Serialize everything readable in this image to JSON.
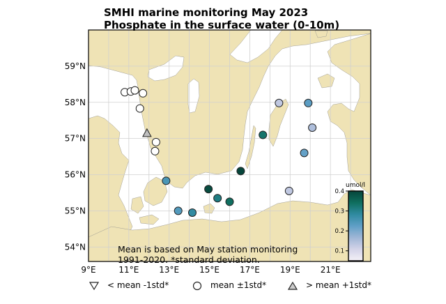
{
  "title_line1": "SMHI marine monitoring May 2023",
  "title_line2": "Phosphate in the surface water (0-10m)",
  "note_line1": "Mean is based on May station monitoring",
  "note_line2": "1991-2020. *standard deviation.",
  "lon_ticks": [
    {
      "value": 9,
      "label": "9°E"
    },
    {
      "value": 11,
      "label": "11°E"
    },
    {
      "value": 13,
      "label": "13°E"
    },
    {
      "value": 15,
      "label": "15°E"
    },
    {
      "value": 17,
      "label": "17°E"
    },
    {
      "value": 19,
      "label": "19°E"
    },
    {
      "value": 21,
      "label": "21°E"
    }
  ],
  "lat_ticks": [
    {
      "value": 54,
      "label": "54°N"
    },
    {
      "value": 55,
      "label": "55°N"
    },
    {
      "value": 56,
      "label": "56°N"
    },
    {
      "value": 57,
      "label": "57°N"
    },
    {
      "value": 58,
      "label": "58°N"
    },
    {
      "value": 59,
      "label": "59°N"
    }
  ],
  "colorbar": {
    "unit": "umol/l",
    "min": 0.05,
    "max": 0.4,
    "ticks": [
      {
        "value": 0.1,
        "label": "0.1"
      },
      {
        "value": 0.2,
        "label": "0.2"
      },
      {
        "value": 0.3,
        "label": "0.3"
      },
      {
        "value": 0.4,
        "label": "0.4"
      }
    ],
    "colors": [
      "#f4f1f7",
      "#d3d3e8",
      "#9fb6d6",
      "#5f9fc6",
      "#2f8aa0",
      "#0f6e5e",
      "#06453a"
    ]
  },
  "legend": [
    {
      "symbol": "triangle-down",
      "label": "< mean -1std*"
    },
    {
      "symbol": "circle",
      "label": "mean ±1std*"
    },
    {
      "symbol": "triangle-up",
      "label": "> mean +1std*"
    }
  ],
  "colors": {
    "land": "#efe3b5",
    "sea": "#ffffff",
    "grid": "#d0d0d0",
    "marker_edge": "#222222",
    "high_marker": "#bfbfbf"
  },
  "chart_data": {
    "type": "scatter",
    "title": "SMHI marine monitoring May 2023 Phosphate in the surface water (0-10m)",
    "xlim": [
      9,
      23
    ],
    "ylim": [
      53.6,
      60.0
    ],
    "stations": [
      {
        "lon": 10.8,
        "lat": 58.28,
        "category": "mean",
        "value": null
      },
      {
        "lon": 11.1,
        "lat": 58.3,
        "category": "mean",
        "value": null
      },
      {
        "lon": 11.3,
        "lat": 58.33,
        "category": "mean",
        "value": null
      },
      {
        "lon": 11.7,
        "lat": 58.25,
        "category": "mean",
        "value": null
      },
      {
        "lon": 11.55,
        "lat": 57.83,
        "category": "mean",
        "value": null
      },
      {
        "lon": 11.9,
        "lat": 57.15,
        "category": "high",
        "value": null
      },
      {
        "lon": 12.35,
        "lat": 56.9,
        "category": "mean",
        "value": null
      },
      {
        "lon": 12.3,
        "lat": 56.65,
        "category": "mean",
        "value": null
      },
      {
        "lon": 12.85,
        "lat": 55.83,
        "category": "mean",
        "value": 0.25
      },
      {
        "lon": 13.45,
        "lat": 55.0,
        "category": "mean",
        "value": 0.24
      },
      {
        "lon": 14.15,
        "lat": 54.95,
        "category": "mean",
        "value": 0.28
      },
      {
        "lon": 14.95,
        "lat": 55.6,
        "category": "mean",
        "value": 0.39
      },
      {
        "lon": 15.4,
        "lat": 55.35,
        "category": "mean",
        "value": 0.31
      },
      {
        "lon": 16.0,
        "lat": 55.25,
        "category": "mean",
        "value": 0.34
      },
      {
        "lon": 16.55,
        "lat": 56.1,
        "category": "mean",
        "value": 0.4
      },
      {
        "lon": 17.65,
        "lat": 57.1,
        "category": "mean",
        "value": 0.33
      },
      {
        "lon": 18.45,
        "lat": 57.98,
        "category": "mean",
        "value": 0.13
      },
      {
        "lon": 19.9,
        "lat": 57.98,
        "category": "mean",
        "value": 0.23
      },
      {
        "lon": 20.1,
        "lat": 57.3,
        "category": "mean",
        "value": 0.15
      },
      {
        "lon": 19.7,
        "lat": 56.6,
        "category": "mean",
        "value": 0.22
      },
      {
        "lon": 18.95,
        "lat": 55.55,
        "category": "mean",
        "value": 0.13
      }
    ]
  }
}
